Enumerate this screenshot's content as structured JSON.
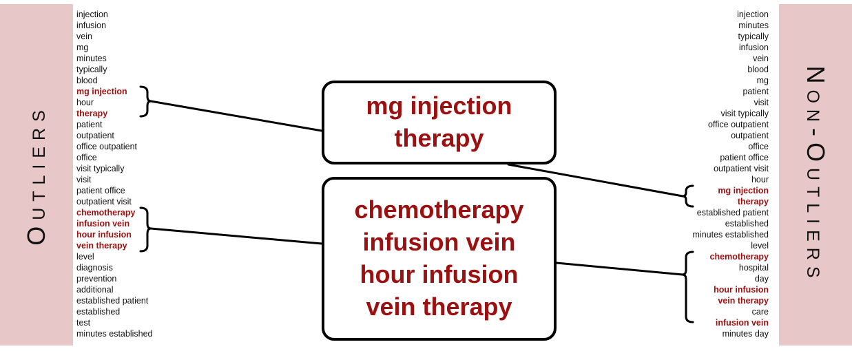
{
  "left_panel": {
    "label": "Outliers",
    "terms": [
      {
        "text": "injection",
        "highlight": false
      },
      {
        "text": "infusion",
        "highlight": false
      },
      {
        "text": "vein",
        "highlight": false
      },
      {
        "text": "mg",
        "highlight": false
      },
      {
        "text": "minutes",
        "highlight": false
      },
      {
        "text": "typically",
        "highlight": false
      },
      {
        "text": "blood",
        "highlight": false
      },
      {
        "text": "mg injection",
        "highlight": true
      },
      {
        "text": "hour",
        "highlight": false
      },
      {
        "text": "therapy",
        "highlight": true
      },
      {
        "text": "patient",
        "highlight": false
      },
      {
        "text": "outpatient",
        "highlight": false
      },
      {
        "text": "office outpatient",
        "highlight": false
      },
      {
        "text": "office",
        "highlight": false
      },
      {
        "text": "visit typically",
        "highlight": false
      },
      {
        "text": "visit",
        "highlight": false
      },
      {
        "text": "patient office",
        "highlight": false
      },
      {
        "text": "outpatient visit",
        "highlight": false
      },
      {
        "text": "chemotherapy",
        "highlight": true
      },
      {
        "text": "infusion vein",
        "highlight": true
      },
      {
        "text": "hour infusion",
        "highlight": true
      },
      {
        "text": "vein therapy",
        "highlight": true
      },
      {
        "text": "level",
        "highlight": false
      },
      {
        "text": "diagnosis",
        "highlight": false
      },
      {
        "text": "prevention",
        "highlight": false
      },
      {
        "text": "additional",
        "highlight": false
      },
      {
        "text": "established patient",
        "highlight": false
      },
      {
        "text": "established",
        "highlight": false
      },
      {
        "text": "test",
        "highlight": false
      },
      {
        "text": "minutes established",
        "highlight": false
      }
    ]
  },
  "right_panel": {
    "label": "Non-Outliers",
    "terms": [
      {
        "text": "injection",
        "highlight": false
      },
      {
        "text": "minutes",
        "highlight": false
      },
      {
        "text": "typically",
        "highlight": false
      },
      {
        "text": "infusion",
        "highlight": false
      },
      {
        "text": "vein",
        "highlight": false
      },
      {
        "text": "blood",
        "highlight": false
      },
      {
        "text": "mg",
        "highlight": false
      },
      {
        "text": "patient",
        "highlight": false
      },
      {
        "text": "visit",
        "highlight": false
      },
      {
        "text": "visit typically",
        "highlight": false
      },
      {
        "text": "office outpatient",
        "highlight": false
      },
      {
        "text": "outpatient",
        "highlight": false
      },
      {
        "text": "office",
        "highlight": false
      },
      {
        "text": "patient office",
        "highlight": false
      },
      {
        "text": "outpatient visit",
        "highlight": false
      },
      {
        "text": "hour",
        "highlight": false
      },
      {
        "text": "mg injection",
        "highlight": true
      },
      {
        "text": "therapy",
        "highlight": true
      },
      {
        "text": "established patient",
        "highlight": false
      },
      {
        "text": "established",
        "highlight": false
      },
      {
        "text": "minutes established",
        "highlight": false
      },
      {
        "text": "level",
        "highlight": false
      },
      {
        "text": "chemotherapy",
        "highlight": true
      },
      {
        "text": "hospital",
        "highlight": false
      },
      {
        "text": "day",
        "highlight": false
      },
      {
        "text": "hour infusion",
        "highlight": true
      },
      {
        "text": "vein therapy",
        "highlight": true
      },
      {
        "text": "care",
        "highlight": false
      },
      {
        "text": "infusion vein",
        "highlight": true
      },
      {
        "text": "minutes day",
        "highlight": false
      }
    ]
  },
  "topic_boxes": {
    "top": {
      "lines": [
        "mg injection",
        "therapy"
      ]
    },
    "bottom": {
      "lines": [
        "chemotherapy",
        "infusion vein",
        "hour infusion",
        "vein therapy"
      ]
    }
  },
  "colors": {
    "highlight": "#9b1111",
    "band": "#e8c7c8",
    "text": "#111111"
  }
}
